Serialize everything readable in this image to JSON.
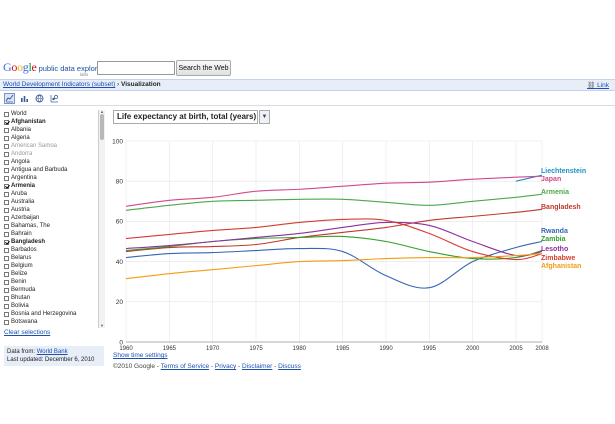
{
  "header": {
    "logo_brand": "Google",
    "logo_product": "public data explorer",
    "logo_labs": "labs",
    "search_value": "",
    "search_button": "Search the Web"
  },
  "breadcrumb": {
    "dataset_link": "World Development Indicators (subset)",
    "separator": "›",
    "current": "Visualization",
    "link_label": "Link"
  },
  "toolbar": {
    "icons": [
      "line-chart-icon",
      "bar-chart-icon",
      "map-icon",
      "bubble-chart-icon"
    ],
    "active_index": 0
  },
  "sidebar": {
    "countries": [
      {
        "name": "World",
        "checked": false,
        "greyed": false
      },
      {
        "name": "Afghanistan",
        "checked": true,
        "greyed": false
      },
      {
        "name": "Albania",
        "checked": false,
        "greyed": false
      },
      {
        "name": "Algeria",
        "checked": false,
        "greyed": false
      },
      {
        "name": "American Samoa",
        "checked": false,
        "greyed": true
      },
      {
        "name": "Andorra",
        "checked": false,
        "greyed": true
      },
      {
        "name": "Angola",
        "checked": false,
        "greyed": false
      },
      {
        "name": "Antigua and Barbuda",
        "checked": false,
        "greyed": false
      },
      {
        "name": "Argentina",
        "checked": false,
        "greyed": false
      },
      {
        "name": "Armenia",
        "checked": true,
        "greyed": false
      },
      {
        "name": "Aruba",
        "checked": false,
        "greyed": false
      },
      {
        "name": "Australia",
        "checked": false,
        "greyed": false
      },
      {
        "name": "Austria",
        "checked": false,
        "greyed": false
      },
      {
        "name": "Azerbaijan",
        "checked": false,
        "greyed": false
      },
      {
        "name": "Bahamas, The",
        "checked": false,
        "greyed": false
      },
      {
        "name": "Bahrain",
        "checked": false,
        "greyed": false
      },
      {
        "name": "Bangladesh",
        "checked": true,
        "greyed": false
      },
      {
        "name": "Barbados",
        "checked": false,
        "greyed": false
      },
      {
        "name": "Belarus",
        "checked": false,
        "greyed": false
      },
      {
        "name": "Belgium",
        "checked": false,
        "greyed": false
      },
      {
        "name": "Belize",
        "checked": false,
        "greyed": false
      },
      {
        "name": "Benin",
        "checked": false,
        "greyed": false
      },
      {
        "name": "Bermuda",
        "checked": false,
        "greyed": false
      },
      {
        "name": "Bhutan",
        "checked": false,
        "greyed": false
      },
      {
        "name": "Bolivia",
        "checked": false,
        "greyed": false
      },
      {
        "name": "Bosnia and Herzegovina",
        "checked": false,
        "greyed": false
      },
      {
        "name": "Botswana",
        "checked": false,
        "greyed": false
      }
    ],
    "clear_selections": "Clear selections"
  },
  "data_source": {
    "prefix": "Data from:",
    "source": "World Bank",
    "updated": "Last updated: December 6, 2010"
  },
  "chart_data": {
    "type": "line",
    "title": "Life expectancy at birth, total (years)",
    "xlim": [
      1960,
      2008
    ],
    "ylim": [
      0,
      100
    ],
    "x_ticks": [
      1960,
      1965,
      1970,
      1975,
      1980,
      1985,
      1990,
      1995,
      2000,
      2005,
      2008
    ],
    "y_ticks": [
      0,
      20,
      40,
      60,
      80,
      100
    ],
    "grid": true,
    "legend": "right",
    "x": [
      1960,
      1965,
      1970,
      1975,
      1980,
      1985,
      1990,
      1995,
      2000,
      2005,
      2008
    ],
    "series": [
      {
        "name": "Liechtenstein",
        "color": "#1f8fc8",
        "values": [
          null,
          null,
          null,
          null,
          null,
          null,
          null,
          null,
          null,
          80,
          83
        ]
      },
      {
        "name": "Japan",
        "color": "#d2488c",
        "values": [
          67.5,
          70.5,
          72,
          75,
          76,
          77.5,
          79,
          79.5,
          81,
          82,
          82.5
        ]
      },
      {
        "name": "Armenia",
        "color": "#4aa94a",
        "values": [
          65.5,
          68,
          70,
          70.5,
          71,
          71,
          69.5,
          68,
          70,
          72,
          73.5
        ]
      },
      {
        "name": "Bangladesh",
        "color": "#c0392b",
        "values": [
          45,
          47,
          47.5,
          48.5,
          52,
          54.5,
          57,
          60.5,
          62.5,
          64.5,
          66
        ]
      },
      {
        "name": "Rwanda",
        "color": "#3565b5",
        "values": [
          42,
          44,
          44.5,
          45.5,
          46.5,
          45,
          33,
          27,
          40,
          47,
          50
        ]
      },
      {
        "name": "Zambia",
        "color": "#33a02c",
        "values": [
          45.5,
          47.5,
          50,
          51.5,
          52,
          52.5,
          50,
          45,
          41.5,
          42,
          45.5
        ]
      },
      {
        "name": "Lesotho",
        "color": "#8e2fa0",
        "values": [
          46.5,
          48,
          50,
          52,
          54,
          57,
          59.5,
          58,
          50,
          43,
          45
        ]
      },
      {
        "name": "Zimbabwe",
        "color": "#d63c2f",
        "values": [
          51.5,
          53.5,
          55.5,
          57,
          59.5,
          61,
          60.5,
          54,
          45,
          41,
          44
        ]
      },
      {
        "name": "Afghanistan",
        "color": "#f39c12",
        "values": [
          31.5,
          34,
          36,
          38,
          40,
          40.5,
          41.5,
          42,
          42,
          43,
          44
        ]
      }
    ]
  },
  "chart_labels": [
    "Liechtenstein",
    "Japan",
    "Armenia",
    "Bangladesh",
    "Rwanda",
    "Zambia",
    "Lesotho",
    "Zimbabwe",
    "Afghanistan"
  ],
  "links": {
    "time_settings": "Show time settings"
  },
  "footer": {
    "copyright": "©2010 Google -",
    "terms": "Terms of Service",
    "privacy": "Privacy",
    "disclaimer": "Disclaimer",
    "discuss": "Discuss",
    "separator": "-"
  }
}
